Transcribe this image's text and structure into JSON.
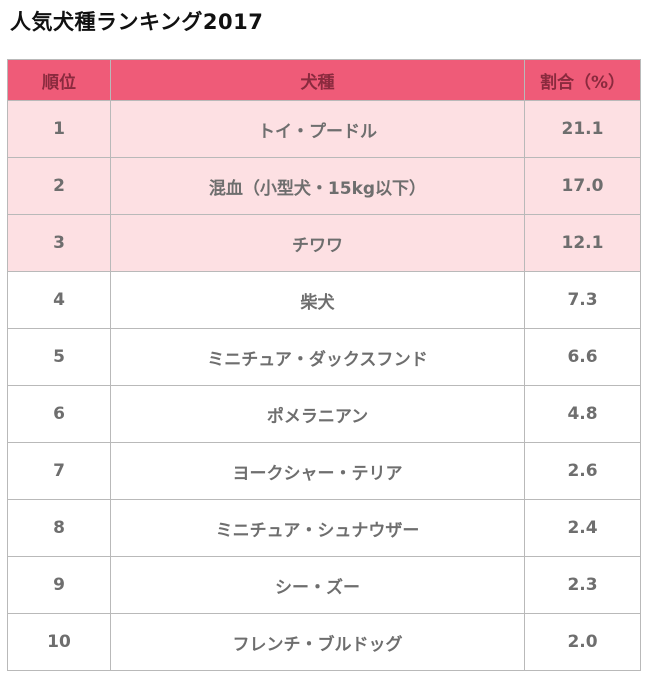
{
  "title": "人気犬種ランキング2017",
  "colors": {
    "header_bg": "#ef5b78",
    "header_text": "#8a2a3e",
    "highlight_row_bg": "#fde0e3",
    "text": "#6e6e6e"
  },
  "chart_data": {
    "type": "table",
    "title": "人気犬種ランキング2017",
    "columns": [
      "順位",
      "犬種",
      "割合（%）"
    ],
    "highlighted_rows": [
      1,
      2,
      3
    ],
    "rows": [
      {
        "rank": "1",
        "breed": "トイ・プードル",
        "percent": "21.1"
      },
      {
        "rank": "2",
        "breed": "混血（小型犬・15kg以下）",
        "percent": "17.0"
      },
      {
        "rank": "3",
        "breed": "チワワ",
        "percent": "12.1"
      },
      {
        "rank": "4",
        "breed": "柴犬",
        "percent": "7.3"
      },
      {
        "rank": "5",
        "breed": "ミニチュア・ダックスフンド",
        "percent": "6.6"
      },
      {
        "rank": "6",
        "breed": "ポメラニアン",
        "percent": "4.8"
      },
      {
        "rank": "7",
        "breed": "ヨークシャー・テリア",
        "percent": "2.6"
      },
      {
        "rank": "8",
        "breed": "ミニチュア・シュナウザー",
        "percent": "2.4"
      },
      {
        "rank": "9",
        "breed": "シー・ズー",
        "percent": "2.3"
      },
      {
        "rank": "10",
        "breed": "フレンチ・ブルドッグ",
        "percent": "2.0"
      }
    ]
  }
}
